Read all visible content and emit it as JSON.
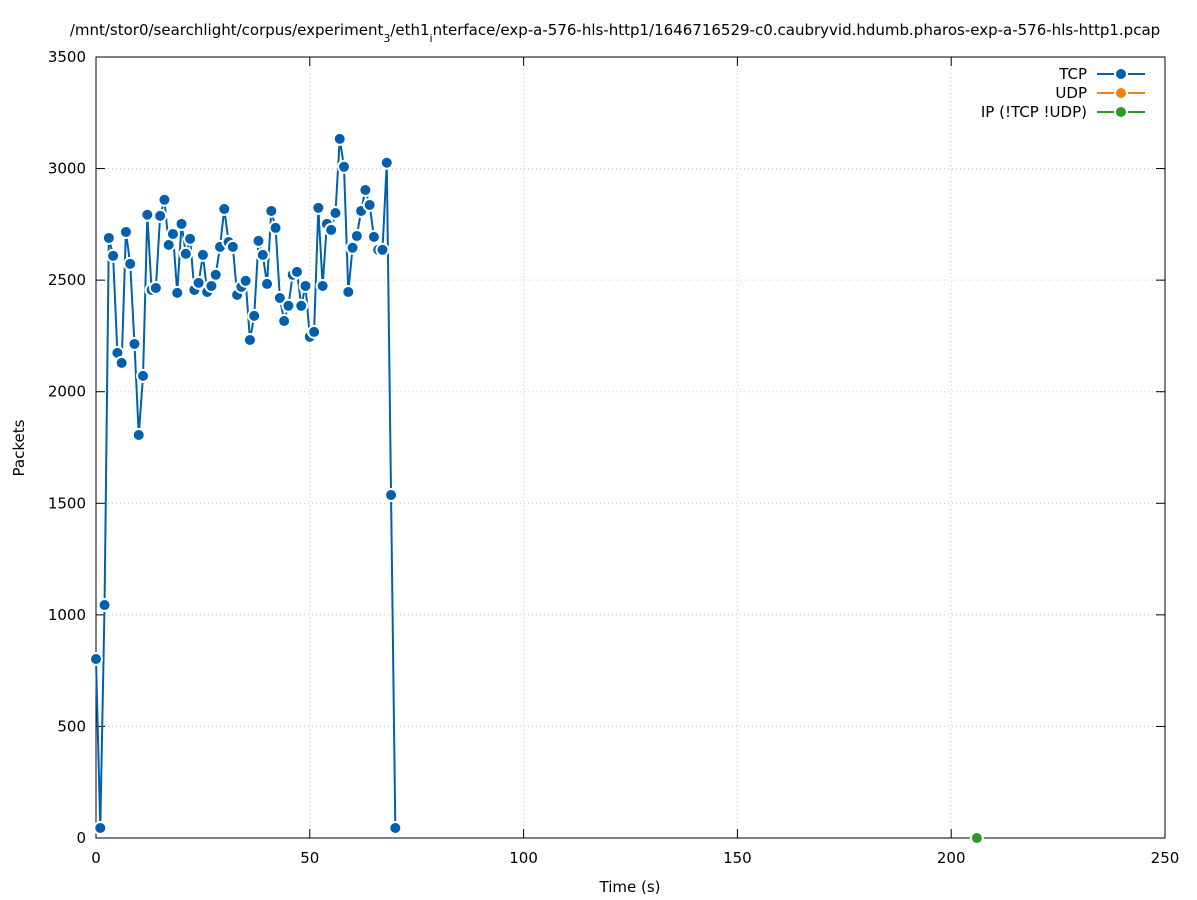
{
  "chart_data": {
    "type": "line",
    "title": [
      {
        "text": "/mnt/stor0/searchlight/corpus/experiment",
        "subscript": false
      },
      {
        "text": "3",
        "subscript": true
      },
      {
        "text": "/eth1",
        "subscript": false
      },
      {
        "text": "i",
        "subscript": true
      },
      {
        "text": "nterface/exp-a-576-hls-http1/1646716529-c0.caubryvid.hdumb.pharos-exp-a-576-hls-http1.pcap",
        "subscript": false
      }
    ],
    "x_label": "Time (s)",
    "y_label": "Packets",
    "xlim": [
      0,
      250
    ],
    "xticks": [
      0,
      50,
      100,
      150,
      200,
      250
    ],
    "ylim": [
      0,
      3500
    ],
    "yticks": [
      0,
      500,
      1000,
      1500,
      2000,
      2500,
      3000,
      3500
    ],
    "grid": true,
    "legend": "top-right",
    "series": [
      {
        "name": "TCP",
        "color": "#0060ad",
        "x": [
          0,
          1,
          2,
          3,
          4,
          5,
          6,
          7,
          8,
          9,
          10,
          11,
          12,
          13,
          14,
          15,
          16,
          17,
          18,
          19,
          20,
          21,
          22,
          23,
          24,
          25,
          26,
          27,
          28,
          29,
          30,
          31,
          32,
          33,
          34,
          35,
          36,
          37,
          38,
          39,
          40,
          41,
          42,
          43,
          44,
          45,
          46,
          47,
          48,
          49,
          50,
          51,
          52,
          53,
          54,
          55,
          56,
          57,
          58,
          59,
          60,
          61,
          62,
          63,
          64,
          65,
          66,
          67,
          68,
          69,
          70
        ],
        "values": [
          802,
          45,
          1044,
          2689,
          2609,
          2174,
          2129,
          2716,
          2573,
          2214,
          1806,
          2071,
          2793,
          2456,
          2465,
          2788,
          2860,
          2658,
          2707,
          2443,
          2752,
          2618,
          2685,
          2456,
          2488,
          2613,
          2447,
          2474,
          2524,
          2649,
          2819,
          2671,
          2649,
          2434,
          2470,
          2497,
          2232,
          2340,
          2676,
          2613,
          2483,
          2810,
          2734,
          2420,
          2317,
          2385,
          2524,
          2537,
          2385,
          2474,
          2246,
          2268,
          2824,
          2474,
          2752,
          2725,
          2801,
          3133,
          3008,
          2447,
          2645,
          2698,
          2810,
          2904,
          2837,
          2694,
          2636,
          2636,
          3026,
          1537,
          45
        ]
      },
      {
        "name": "UDP",
        "color": "#f47f0f",
        "x": [],
        "values": []
      },
      {
        "name": "IP (!TCP  !UDP)",
        "color": "#2a9a2a",
        "x": [
          206
        ],
        "values": [
          0
        ]
      }
    ]
  }
}
